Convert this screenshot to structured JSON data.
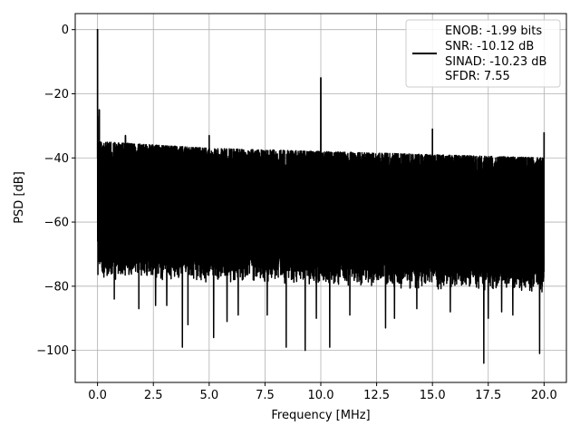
{
  "chart_data": {
    "type": "line",
    "xlabel": "Frequency [MHz]",
    "ylabel": "PSD [dB]",
    "xlim": [
      -1.0,
      21.0
    ],
    "ylim": [
      -110,
      5
    ],
    "xticks": [
      0.0,
      2.5,
      5.0,
      7.5,
      10.0,
      12.5,
      15.0,
      17.5,
      20.0
    ],
    "xtick_labels": [
      "0.0",
      "2.5",
      "5.0",
      "7.5",
      "10.0",
      "12.5",
      "15.0",
      "17.5",
      "20.0"
    ],
    "yticks": [
      0,
      -20,
      -40,
      -60,
      -80,
      -100
    ],
    "ytick_labels": [
      "0",
      "−20",
      "−40",
      "−60",
      "−80",
      "−100"
    ],
    "grid": true,
    "legend_position": "top-right",
    "legend_lines": [
      "ENOB: -1.99 bits",
      "SNR: -10.12 dB",
      "SINAD: -10.23 dB",
      "SFDR: 7.55"
    ],
    "line_color": "#000000",
    "series": [
      {
        "noise_floor_upper": [
          [
            0.2,
            -35
          ],
          [
            5.0,
            -37
          ],
          [
            10.0,
            -38
          ],
          [
            15.0,
            -39
          ],
          [
            20.0,
            -40
          ]
        ],
        "noise_floor_lower": [
          [
            0.2,
            -72
          ],
          [
            5.0,
            -73
          ],
          [
            10.0,
            -74
          ],
          [
            15.0,
            -75
          ],
          [
            20.0,
            -77
          ]
        ],
        "peaks": [
          {
            "x": 0.0,
            "y": 0.2
          },
          {
            "x": 0.08,
            "y": -25
          },
          {
            "x": 1.25,
            "y": -33
          },
          {
            "x": 5.0,
            "y": -33
          },
          {
            "x": 10.0,
            "y": -15
          },
          {
            "x": 15.0,
            "y": -31
          },
          {
            "x": 20.0,
            "y": -32
          }
        ],
        "dips": [
          {
            "x": 0.75,
            "y": -84
          },
          {
            "x": 1.85,
            "y": -87
          },
          {
            "x": 2.6,
            "y": -86
          },
          {
            "x": 3.1,
            "y": -86
          },
          {
            "x": 3.8,
            "y": -99
          },
          {
            "x": 4.05,
            "y": -92
          },
          {
            "x": 5.2,
            "y": -96
          },
          {
            "x": 5.8,
            "y": -91
          },
          {
            "x": 6.3,
            "y": -89
          },
          {
            "x": 7.6,
            "y": -89
          },
          {
            "x": 8.45,
            "y": -99
          },
          {
            "x": 9.3,
            "y": -100
          },
          {
            "x": 9.8,
            "y": -90
          },
          {
            "x": 10.4,
            "y": -99
          },
          {
            "x": 11.3,
            "y": -89
          },
          {
            "x": 12.9,
            "y": -93
          },
          {
            "x": 13.3,
            "y": -90
          },
          {
            "x": 14.3,
            "y": -87
          },
          {
            "x": 15.8,
            "y": -88
          },
          {
            "x": 17.3,
            "y": -104
          },
          {
            "x": 17.5,
            "y": -90
          },
          {
            "x": 18.1,
            "y": -88
          },
          {
            "x": 18.6,
            "y": -89
          },
          {
            "x": 19.8,
            "y": -101
          }
        ]
      }
    ]
  }
}
